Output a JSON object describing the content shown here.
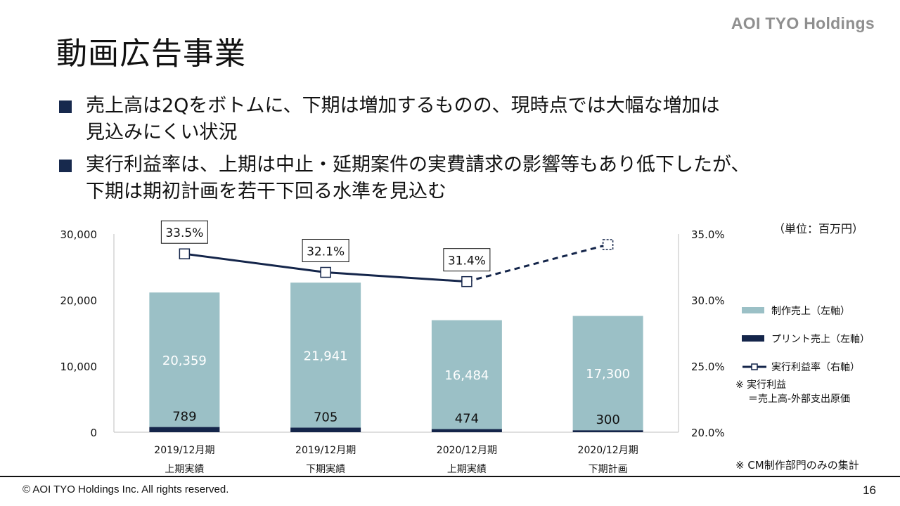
{
  "header": {
    "brand": "AOI TYO Holdings",
    "title": "動画広告事業"
  },
  "bullets": [
    {
      "line1": "売上高は2Qをボトムに、下期は増加するものの、現時点では大幅な増加は",
      "line2": "見込みにくい状況"
    },
    {
      "line1": "実行利益率は、上期は中止・延期案件の実費請求の影響等もあり低下したが、",
      "line2": "下期は期初計画を若干下回る水準を見込む"
    }
  ],
  "unit_label": "（単位：百万円）",
  "chart_data": {
    "type": "bar",
    "stacked": true,
    "categories": [
      [
        "2019/12月期",
        "上期実績"
      ],
      [
        "2019/12月期",
        "下期実績"
      ],
      [
        "2020/12月期",
        "上期実績"
      ],
      [
        "2020/12月期",
        "下期計画"
      ]
    ],
    "series": [
      {
        "name": "プリント売上（左軸）",
        "values": [
          789,
          705,
          474,
          300
        ],
        "color": "#14254a",
        "axis": "left"
      },
      {
        "name": "制作売上（左軸）",
        "values": [
          20359,
          21941,
          16484,
          17300
        ],
        "color": "#9bc0c6",
        "axis": "left"
      },
      {
        "name": "実行利益率（右軸）",
        "type": "line",
        "values": [
          33.5,
          32.1,
          31.4,
          34.2
        ],
        "labels": [
          "33.5%",
          "32.1%",
          "31.4%",
          ""
        ],
        "color": "#14254a",
        "axis": "right",
        "dashed_last_segment": true
      }
    ],
    "left_axis": {
      "ticks": [
        "0",
        "10,000",
        "20,000",
        "30,000"
      ],
      "ylim": [
        0,
        30000
      ]
    },
    "right_axis": {
      "ticks": [
        "20.0%",
        "25.0%",
        "30.0%",
        "35.0%"
      ],
      "ylim": [
        20,
        35
      ]
    },
    "legend": [
      {
        "label": "制作売上（左軸）",
        "kind": "bar",
        "color": "#9bc0c6"
      },
      {
        "label": "プリント売上（左軸）",
        "kind": "bar",
        "color": "#14254a"
      },
      {
        "label": "実行利益率（右軸）",
        "kind": "line",
        "color": "#14254a"
      }
    ],
    "legend_position": "right"
  },
  "notes": {
    "note1_line1": "※ 実行利益",
    "note1_line2": "＝売上高-外部支出原価",
    "note2": "※ CM制作部門のみの集計"
  },
  "footer": {
    "copyright": "© AOI TYO Holdings Inc. All rights reserved.",
    "page": "16"
  }
}
